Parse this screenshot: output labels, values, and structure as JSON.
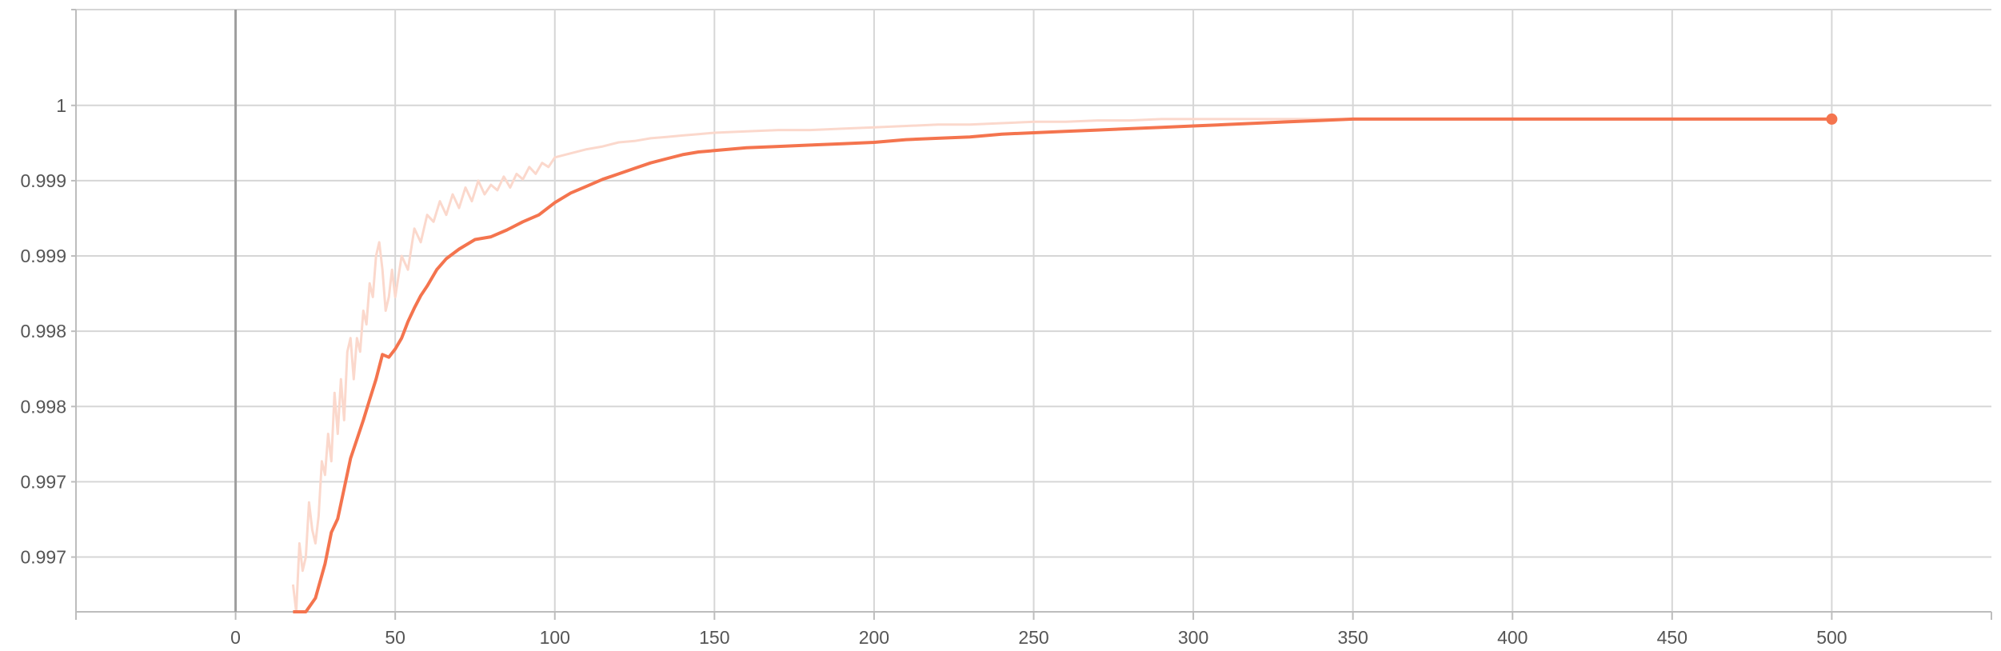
{
  "chart_data": {
    "type": "line",
    "title": "",
    "xlabel": "",
    "ylabel": "",
    "xlim": [
      -50,
      550
    ],
    "ylim": [
      0.9966,
      1.001
    ],
    "grid": true,
    "colors": {
      "line": "#f4744e",
      "raw_line": "#fbd8cc",
      "grid": "#d6d6d6",
      "zero_axis": "#9e9e9e",
      "tick_text": "#555555"
    },
    "x_ticks": [
      {
        "value": 0,
        "label": "0"
      },
      {
        "value": 50,
        "label": "50"
      },
      {
        "value": 100,
        "label": "100"
      },
      {
        "value": 150,
        "label": "150"
      },
      {
        "value": 200,
        "label": "200"
      },
      {
        "value": 250,
        "label": "250"
      },
      {
        "value": 300,
        "label": "300"
      },
      {
        "value": 350,
        "label": "350"
      },
      {
        "value": 400,
        "label": "400"
      },
      {
        "value": 450,
        "label": "450"
      },
      {
        "value": 500,
        "label": "500"
      }
    ],
    "y_ticks": [
      {
        "value": 0.997,
        "label": "0.997"
      },
      {
        "value": 0.99755,
        "label": "0.997"
      },
      {
        "value": 0.9981,
        "label": "0.998"
      },
      {
        "value": 0.99865,
        "label": "0.998"
      },
      {
        "value": 0.9992,
        "label": "0.999"
      },
      {
        "value": 0.99975,
        "label": "0.999"
      },
      {
        "value": 1.0003,
        "label": "1"
      }
    ],
    "series": [
      {
        "role": "smoothed",
        "x": [
          18,
          22,
          25,
          28,
          30,
          32,
          34,
          36,
          38,
          40,
          42,
          44,
          46,
          48,
          50,
          52,
          54,
          56,
          58,
          60,
          63,
          66,
          70,
          75,
          80,
          85,
          90,
          95,
          100,
          105,
          110,
          115,
          120,
          125,
          130,
          135,
          140,
          145,
          150,
          160,
          170,
          180,
          190,
          200,
          210,
          220,
          230,
          240,
          250,
          260,
          270,
          280,
          290,
          300,
          310,
          320,
          330,
          340,
          350,
          400,
          450,
          500
        ],
        "y": [
          0.9965,
          0.99655,
          0.9967,
          0.99695,
          0.99718,
          0.99728,
          0.9975,
          0.99772,
          0.99786,
          0.998,
          0.99815,
          0.9983,
          0.99848,
          0.99846,
          0.99852,
          0.9986,
          0.99872,
          0.99882,
          0.99891,
          0.99898,
          0.9991,
          0.99918,
          0.99925,
          0.99932,
          0.99934,
          0.99939,
          0.99945,
          0.9995,
          0.99959,
          0.99966,
          0.99971,
          0.99976,
          0.9998,
          0.99984,
          0.99988,
          0.99991,
          0.99994,
          0.99996,
          0.99997,
          0.99999,
          1.0,
          1.00001,
          1.00002,
          1.00003,
          1.00005,
          1.00006,
          1.00007,
          1.00009,
          1.0001,
          1.00011,
          1.00012,
          1.00013,
          1.00014,
          1.00015,
          1.00016,
          1.00017,
          1.00018,
          1.00019,
          1.0002,
          1.0002,
          1.0002,
          1.0002
        ]
      },
      {
        "role": "raw",
        "x": [
          18,
          19,
          20,
          21,
          22,
          23,
          24,
          25,
          26,
          27,
          28,
          29,
          30,
          31,
          32,
          33,
          34,
          35,
          36,
          37,
          38,
          39,
          40,
          41,
          42,
          43,
          44,
          45,
          46,
          47,
          48,
          49,
          50,
          52,
          54,
          56,
          58,
          60,
          62,
          64,
          66,
          68,
          70,
          72,
          74,
          76,
          78,
          80,
          82,
          84,
          86,
          88,
          90,
          92,
          94,
          96,
          98,
          100,
          105,
          110,
          115,
          120,
          125,
          130,
          135,
          140,
          145,
          150,
          160,
          170,
          180,
          190,
          200,
          210,
          220,
          230,
          240,
          250,
          260,
          270,
          280,
          290,
          300,
          320,
          340,
          350,
          400,
          450,
          500
        ],
        "y": [
          0.9968,
          0.9965,
          0.9971,
          0.9969,
          0.997,
          0.9974,
          0.9972,
          0.9971,
          0.9973,
          0.9977,
          0.9976,
          0.9979,
          0.9977,
          0.9982,
          0.9979,
          0.9983,
          0.998,
          0.9985,
          0.9986,
          0.9983,
          0.9986,
          0.9985,
          0.9988,
          0.9987,
          0.999,
          0.9989,
          0.9992,
          0.9993,
          0.9991,
          0.9988,
          0.9989,
          0.9991,
          0.9989,
          0.9992,
          0.9991,
          0.9994,
          0.9993,
          0.9995,
          0.99945,
          0.9996,
          0.9995,
          0.99965,
          0.99955,
          0.9997,
          0.9996,
          0.99975,
          0.99965,
          0.99972,
          0.99968,
          0.99978,
          0.9997,
          0.9998,
          0.99976,
          0.99985,
          0.9998,
          0.99988,
          0.99985,
          0.99992,
          0.99995,
          0.99998,
          1.0,
          1.00003,
          1.00004,
          1.00006,
          1.00007,
          1.00008,
          1.00009,
          1.0001,
          1.00011,
          1.00012,
          1.00012,
          1.00013,
          1.00014,
          1.00015,
          1.00016,
          1.00016,
          1.00017,
          1.00018,
          1.00018,
          1.00019,
          1.00019,
          1.0002,
          1.0002,
          1.0002,
          1.0002,
          1.0002,
          1.0002,
          1.0002,
          1.0002
        ]
      }
    ],
    "last_point": {
      "x": 500,
      "y": 1.0002
    }
  }
}
